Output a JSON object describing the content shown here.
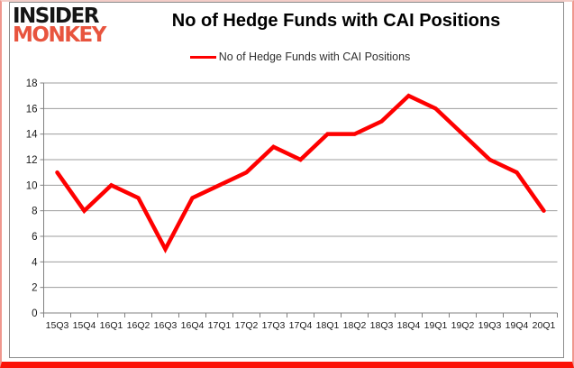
{
  "logo": {
    "top": "INSIDER",
    "bottom": "MONKEY"
  },
  "header": {
    "title": "No of Hedge Funds with CAI Positions"
  },
  "legend": {
    "label": "No of Hedge Funds with CAI Positions"
  },
  "chart_data": {
    "type": "line",
    "title": "No of Hedge Funds with CAI Positions",
    "categories": [
      "15Q3",
      "15Q4",
      "16Q1",
      "16Q2",
      "16Q3",
      "16Q4",
      "17Q1",
      "17Q2",
      "17Q3",
      "17Q4",
      "18Q1",
      "18Q2",
      "18Q3",
      "18Q4",
      "19Q1",
      "19Q2",
      "19Q3",
      "19Q4",
      "20Q1"
    ],
    "series": [
      {
        "name": "No of Hedge Funds with CAI Positions",
        "color": "#fe0000",
        "values": [
          11,
          8,
          10,
          9,
          5,
          9,
          10,
          11,
          13,
          12,
          14,
          14,
          15,
          17,
          16,
          14,
          12,
          11,
          8
        ]
      }
    ],
    "xlabel": "",
    "ylabel": "",
    "ylim": [
      0,
      18
    ],
    "ytick_step": 2,
    "grid": true,
    "legend_position": "top-center"
  },
  "colors": {
    "line": "#fe0000",
    "grid": "#9d9d9d",
    "axis": "#808080",
    "tick_label": "#1a1a1a",
    "title_text": "#000000",
    "legend_text": "#303030",
    "logo_primary": "#151515",
    "logo_accent": "#e8543e",
    "frame_side": "#f0988f",
    "frame_top": "#f3cdc8",
    "frame_bottom": "#fb1207",
    "chart_border": "#8c8c8c",
    "background": "#ffffff"
  }
}
